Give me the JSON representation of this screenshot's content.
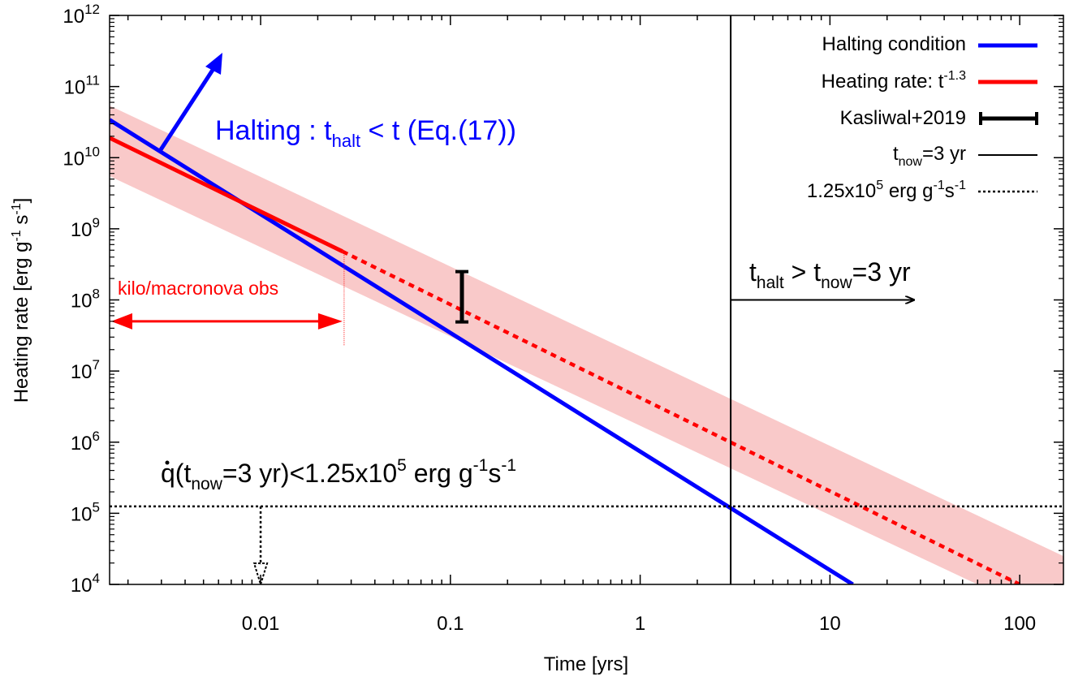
{
  "chart_data": {
    "type": "line",
    "x_scale": "log",
    "y_scale": "log",
    "xlim": [
      0.0016,
      170
    ],
    "ylim": [
      10000,
      1000000000000
    ],
    "xlabel": "Time [yrs]",
    "ylabel": {
      "base": "Heating rate [erg g",
      "sup1": "-1",
      "mid": " s",
      "sup2": "-1",
      "end": "]"
    },
    "x_ticks": [
      {
        "value": 0.01,
        "label": "0.01"
      },
      {
        "value": 0.1,
        "label": "0.1"
      },
      {
        "value": 1,
        "label": "1"
      },
      {
        "value": 10,
        "label": "10"
      },
      {
        "value": 100,
        "label": "100"
      }
    ],
    "y_ticks": [
      {
        "value": 10000,
        "base": "10",
        "exp": "4"
      },
      {
        "value": 100000,
        "base": "10",
        "exp": "5"
      },
      {
        "value": 1000000,
        "base": "10",
        "exp": "6"
      },
      {
        "value": 10000000,
        "base": "10",
        "exp": "7"
      },
      {
        "value": 100000000,
        "base": "10",
        "exp": "8"
      },
      {
        "value": 1000000000,
        "base": "10",
        "exp": "9"
      },
      {
        "value": 10000000000,
        "base": "10",
        "exp": "10"
      },
      {
        "value": 100000000000,
        "base": "10",
        "exp": "11"
      },
      {
        "value": 1000000000000,
        "base": "10",
        "exp": "12"
      }
    ],
    "grid": false,
    "legend_position": "top-right",
    "series": [
      {
        "name": "Halting condition",
        "color": "#0000ff",
        "style": "solid",
        "points": [
          [
            0.0016,
            34000000000
          ],
          [
            13.2,
            10000
          ]
        ]
      },
      {
        "name": "Heating rate: t^-1.3",
        "name_parts": {
          "base": "Heating rate: t",
          "sup": "-1.3"
        },
        "color": "#ff0000",
        "style": "solid",
        "points": [
          [
            0.0016,
            19000000000
          ],
          [
            0.027,
            480000000
          ]
        ]
      },
      {
        "name": "Heating rate: t^-1.3 (extrapolated)",
        "color": "#ff0000",
        "style": "dotted",
        "points": [
          [
            0.027,
            480000000
          ],
          [
            100,
            10000
          ]
        ]
      },
      {
        "name": "t_now=3 yr",
        "name_parts": {
          "base": "t",
          "sub": "now",
          "rest": "=3 yr"
        },
        "color": "#000000",
        "style": "solid-vertical",
        "x": 3
      },
      {
        "name": "1.25x10^5 erg g^-1s^-1",
        "name_parts": {
          "a": "1.25x10",
          "sup1": "5",
          "b": " erg g",
          "sup2": "-1",
          "c": "s",
          "sup3": "-1"
        },
        "color": "#000000",
        "style": "dotted-horizontal",
        "y": 125000
      }
    ],
    "band": {
      "color": "#f9c9c9",
      "points": [
        {
          "x": 0.0016,
          "lo": 5500000000,
          "hi": 54000000000
        },
        {
          "x": 170,
          "lo": 2700,
          "hi": 25000
        }
      ]
    },
    "errorbar": {
      "name": "Kasliwal+2019",
      "color": "#000000",
      "x": 0.115,
      "y_lo": 49000000,
      "y_hi": 250000000
    },
    "annotations": {
      "halting": {
        "text_a": "Halting : t",
        "sub": "halt",
        "text_b": " < t (Eq.(17))",
        "color": "#0000ff"
      },
      "obs": {
        "text": "kilo/macronova obs",
        "color": "#ff0000",
        "x_from": 0.0016,
        "x_to": 0.027,
        "y": 50000000
      },
      "thalt": {
        "a": "t",
        "sub1": "halt",
        "b": " > t",
        "sub2": "now",
        "c": "=3 yr",
        "x_from": 3,
        "x_to": 30,
        "y": 100000000
      },
      "qdot": {
        "dot": "q",
        "a": "(t",
        "sub1": "now",
        "b": "=3 yr)<1.25x10",
        "sup1": "5",
        "c": " erg g",
        "sup2": "-1",
        "d": "s",
        "sup3": "-1"
      },
      "down_arrow": {
        "x": 0.01,
        "y_from": 125000,
        "y_to": 10000
      }
    }
  }
}
